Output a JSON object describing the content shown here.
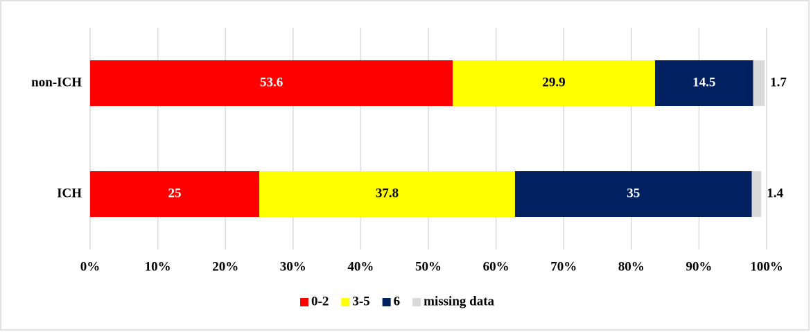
{
  "chart_data": {
    "type": "bar",
    "orientation": "horizontal",
    "stacked": true,
    "categories": [
      "non-ICH",
      "ICH"
    ],
    "series": [
      {
        "name": "0-2",
        "color": "#ff0000",
        "values": [
          53.6,
          25
        ]
      },
      {
        "name": "3-5",
        "color": "#ffff00",
        "values": [
          29.9,
          37.8
        ]
      },
      {
        "name": "6",
        "color": "#002060",
        "values": [
          14.5,
          35
        ]
      },
      {
        "name": "missing data",
        "color": "#d9d9d9",
        "values": [
          1.7,
          1.4
        ]
      }
    ],
    "xlim": [
      0,
      100
    ],
    "xticks": [
      {
        "value": 0,
        "label": "0%"
      },
      {
        "value": 10,
        "label": "10%"
      },
      {
        "value": 20,
        "label": "20%"
      },
      {
        "value": 30,
        "label": "30%"
      },
      {
        "value": 40,
        "label": "40%"
      },
      {
        "value": 50,
        "label": "50%"
      },
      {
        "value": 60,
        "label": "60%"
      },
      {
        "value": 70,
        "label": "70%"
      },
      {
        "value": 80,
        "label": "80%"
      },
      {
        "value": 90,
        "label": "90%"
      },
      {
        "value": 100,
        "label": "100%"
      }
    ],
    "grid": true,
    "legend": "bottom"
  }
}
